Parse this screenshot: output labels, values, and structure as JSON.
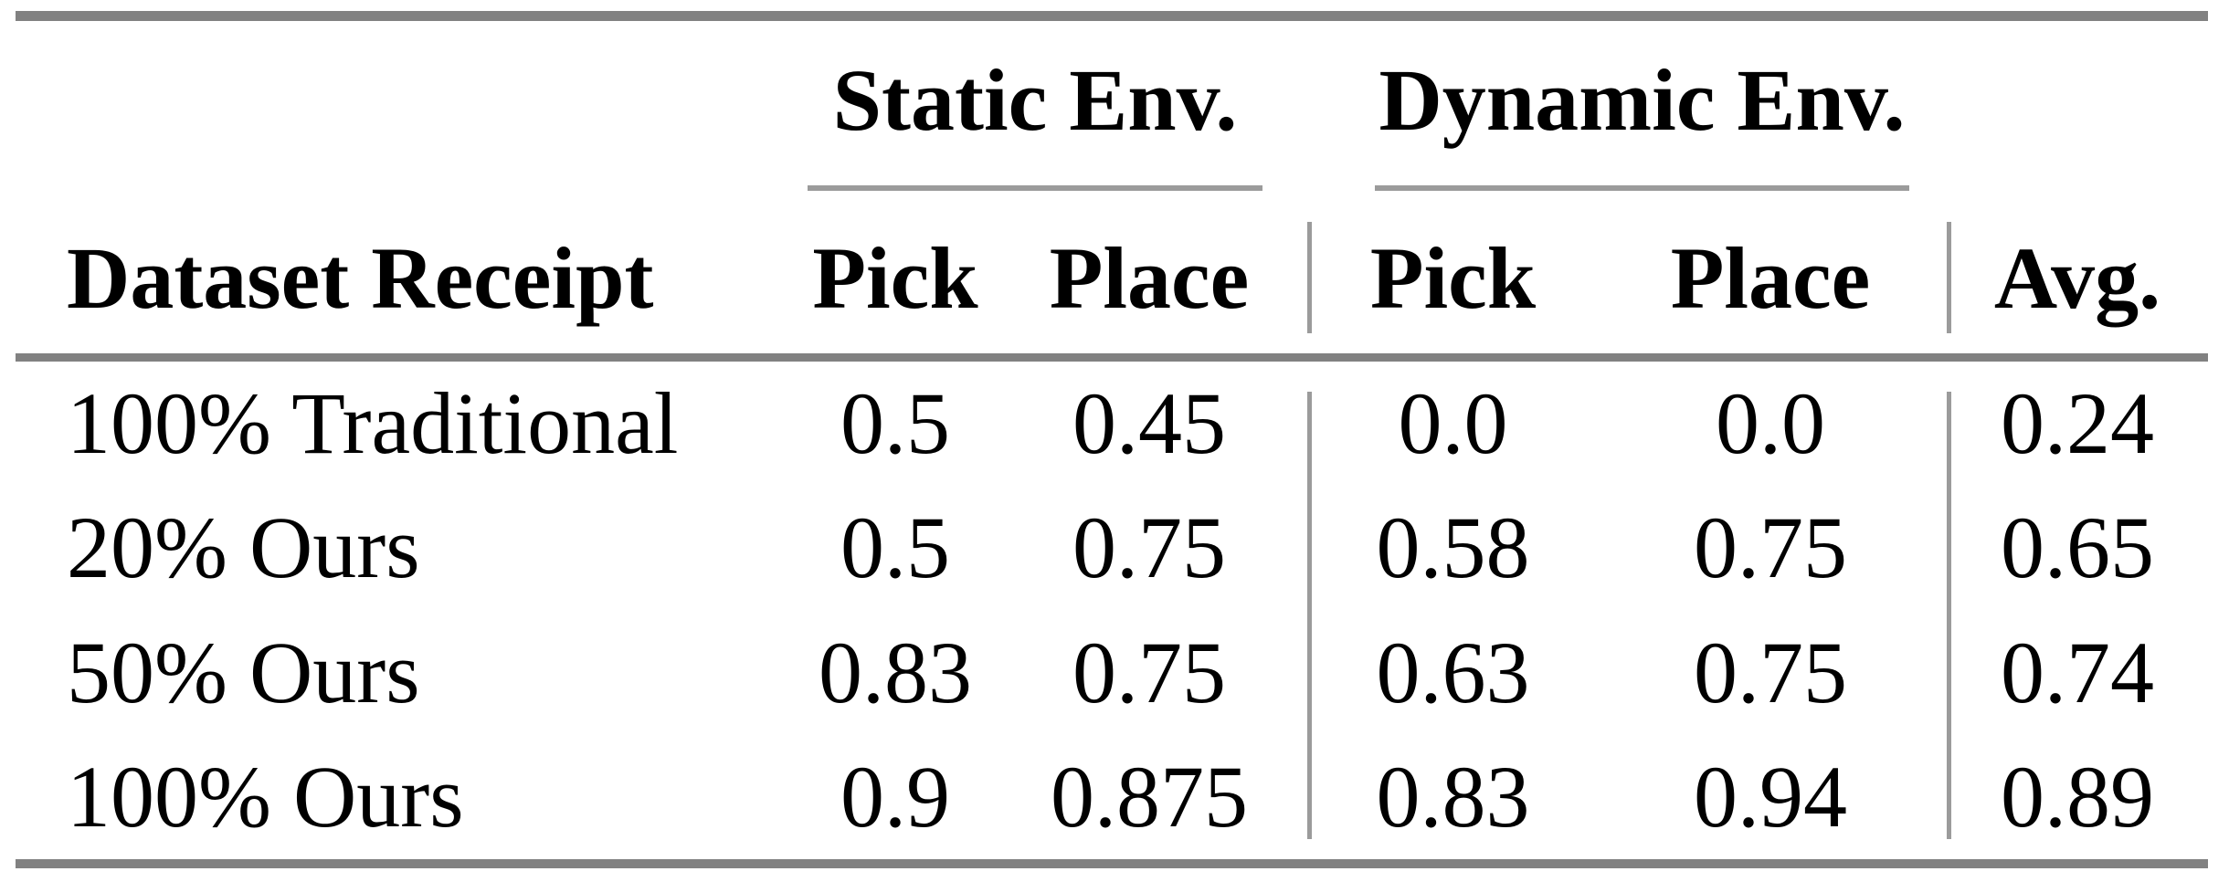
{
  "table": {
    "group_headers": {
      "static": "Static Env.",
      "dynamic": "Dynamic Env."
    },
    "column_headers": {
      "dataset": "Dataset Receipt",
      "static_pick": "Pick",
      "static_place": "Place",
      "dynamic_pick": "Pick",
      "dynamic_place": "Place",
      "avg": "Avg."
    },
    "rows": [
      {
        "label": "100% Traditional",
        "values": [
          "0.5",
          "0.45",
          "0.0",
          "0.0",
          "0.24"
        ]
      },
      {
        "label": "20% Ours",
        "values": [
          "0.5",
          "0.75",
          "0.58",
          "0.75",
          "0.65"
        ]
      },
      {
        "label": "50% Ours",
        "values": [
          "0.83",
          "0.75",
          "0.63",
          "0.75",
          "0.74"
        ]
      },
      {
        "label": "100% Ours",
        "values": [
          "0.9",
          "0.875",
          "0.83",
          "0.94",
          "0.89"
        ]
      }
    ],
    "colors": {
      "rule_heavy": "#818181",
      "rule_light": "#9b9b9b",
      "text": "#000000",
      "background": "#ffffff"
    }
  }
}
